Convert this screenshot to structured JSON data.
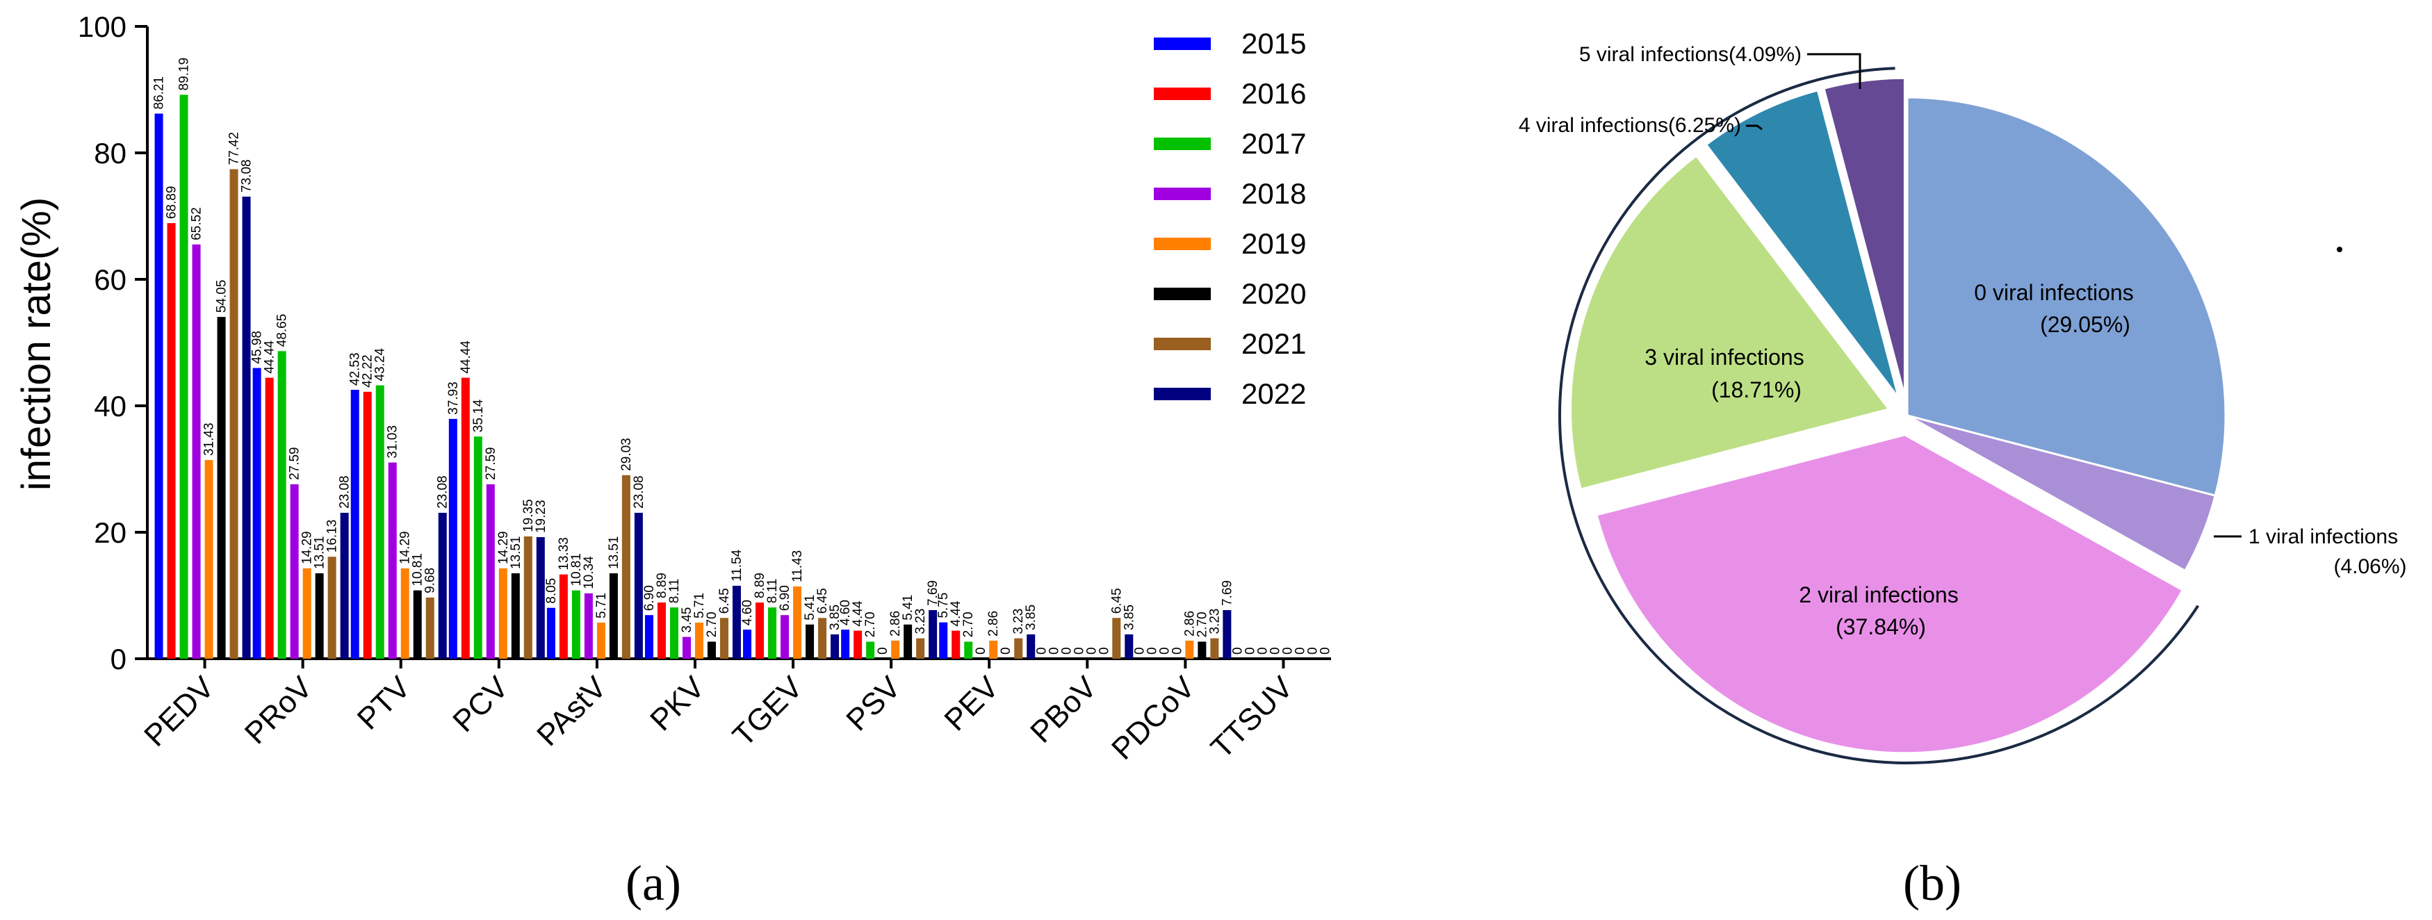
{
  "chart_data": [
    {
      "type": "bar",
      "panel_label": "(a)",
      "ylabel": "infection rate(%)",
      "ylim": [
        0,
        100
      ],
      "yticks": [
        "0",
        "20",
        "40",
        "60",
        "80",
        "100"
      ],
      "categories": [
        "PEDV",
        "PRoV",
        "PTV",
        "PCV",
        "PAstV",
        "PKV",
        "TGEV",
        "PSV",
        "PEV",
        "PBoV",
        "PDCoV",
        "TTSUV"
      ],
      "legend_position": "top-right",
      "series": [
        {
          "name": "2015",
          "color": "#0000ff",
          "values": [
            86.21,
            45.98,
            42.53,
            37.93,
            8.05,
            6.9,
            4.6,
            4.6,
            5.75,
            0,
            0,
            0
          ],
          "labels": [
            "86.21",
            "45.98",
            "42.53",
            "37.93",
            "8.05",
            "6.90",
            "4.60",
            "4.60",
            "5.75",
            "0",
            "0",
            "0"
          ]
        },
        {
          "name": "2016",
          "color": "#ff0000",
          "values": [
            68.89,
            44.44,
            42.22,
            44.44,
            13.33,
            8.89,
            8.89,
            4.44,
            4.44,
            0,
            0,
            0
          ],
          "labels": [
            "68.89",
            "44.44",
            "42.22",
            "44.44",
            "13.33",
            "8.89",
            "8.89",
            "4.44",
            "4.44",
            "0",
            "0",
            "0"
          ]
        },
        {
          "name": "2017",
          "color": "#00c000",
          "values": [
            89.19,
            48.65,
            43.24,
            35.14,
            10.81,
            8.11,
            8.11,
            2.7,
            2.7,
            0,
            0,
            0
          ],
          "labels": [
            "89.19",
            "48.65",
            "43.24",
            "35.14",
            "10.81",
            "8.11",
            "8.11",
            "2.70",
            "2.70",
            "0",
            "0",
            "0"
          ]
        },
        {
          "name": "2018",
          "color": "#a000e0",
          "values": [
            65.52,
            27.59,
            31.03,
            27.59,
            10.34,
            3.45,
            6.9,
            0,
            0,
            0,
            0,
            0
          ],
          "labels": [
            "65.52",
            "27.59",
            "31.03",
            "27.59",
            "10.34",
            "3.45",
            "6.90",
            "0",
            "0",
            "0",
            "0",
            "0"
          ]
        },
        {
          "name": "2019",
          "color": "#ff8000",
          "values": [
            31.43,
            14.29,
            14.29,
            14.29,
            5.71,
            5.71,
            11.43,
            2.86,
            2.86,
            0,
            2.86,
            0
          ],
          "labels": [
            "31.43",
            "14.29",
            "14.29",
            "14.29",
            "5.71",
            "5.71",
            "11.43",
            "2.86",
            "2.86",
            "0",
            "2.86",
            "0"
          ]
        },
        {
          "name": "2020",
          "color": "#000000",
          "values": [
            54.05,
            13.51,
            10.81,
            13.51,
            13.51,
            2.7,
            5.41,
            5.41,
            0,
            0,
            2.7,
            0
          ],
          "labels": [
            "54.05",
            "13.51",
            "10.81",
            "13.51",
            "13.51",
            "2.70",
            "5.41",
            "5.41",
            "0",
            "0",
            "2.70",
            "0"
          ]
        },
        {
          "name": "2021",
          "color": "#996020",
          "values": [
            77.42,
            16.13,
            9.68,
            19.35,
            29.03,
            6.45,
            6.45,
            3.23,
            3.23,
            6.45,
            3.23,
            0
          ],
          "labels": [
            "77.42",
            "16.13",
            "9.68",
            "19.35",
            "29.03",
            "6.45",
            "6.45",
            "3.23",
            "3.23",
            "6.45",
            "3.23",
            "0"
          ]
        },
        {
          "name": "2022",
          "color": "#000080",
          "values": [
            73.08,
            23.08,
            23.08,
            19.23,
            23.08,
            11.54,
            3.85,
            7.69,
            3.85,
            3.85,
            7.69,
            0
          ],
          "labels": [
            "73.08",
            "23.08",
            "23.08",
            "19.23",
            "23.08",
            "11.54",
            "3.85",
            "7.69",
            "3.85",
            "3.85",
            "7.69",
            "0"
          ]
        }
      ]
    },
    {
      "type": "pie",
      "panel_label": "(b)",
      "slices": [
        {
          "name": "0 viral infections",
          "value": 29.05,
          "label": "0 viral infections",
          "pct": "(29.05%)",
          "color": "#7ea1d5",
          "exploded": false
        },
        {
          "name": "1 viral infections",
          "value": 4.06,
          "label": "1 viral infections",
          "pct": "(4.06%)",
          "color": "#a98fd6",
          "exploded": false
        },
        {
          "name": "2 viral infections",
          "value": 37.84,
          "label": "2 viral infections",
          "pct": "(37.84%)",
          "color": "#e890e8",
          "exploded": true
        },
        {
          "name": "3 viral infections",
          "value": 18.71,
          "label": "3 viral infections",
          "pct": "(18.71%)",
          "color": "#bcdf85",
          "exploded": true
        },
        {
          "name": "4 viral infections",
          "value": 6.25,
          "label": "4 viral infections",
          "pct": "(6.25%)",
          "color": "#2e88ae",
          "exploded": true
        },
        {
          "name": "5 viral infections",
          "value": 4.09,
          "label": "5 viral infections",
          "pct": "(4.09%)",
          "color": "#654994",
          "exploded": true
        }
      ]
    }
  ]
}
